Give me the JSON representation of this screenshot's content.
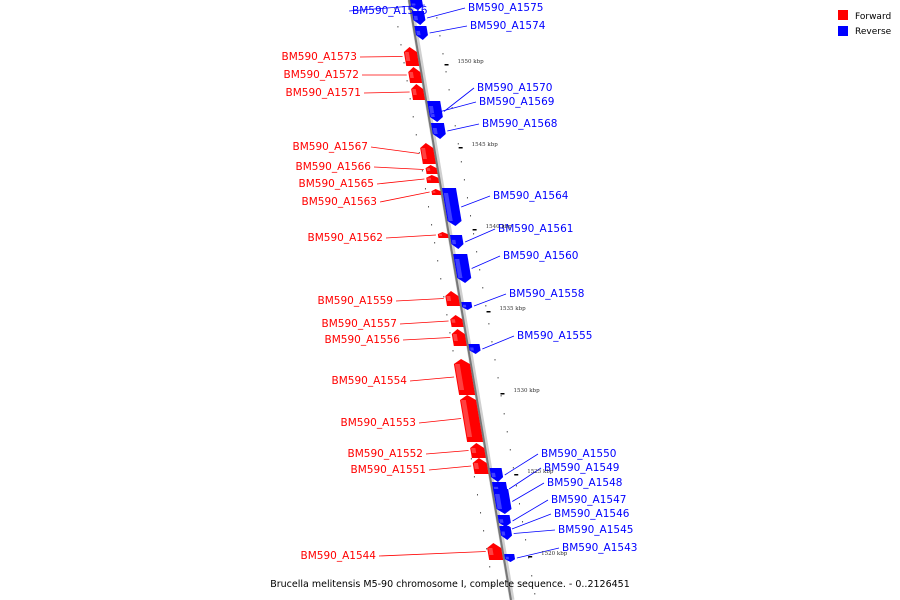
{
  "legend": {
    "forward": {
      "label": "Forward",
      "color": "#ff0000"
    },
    "reverse": {
      "label": "Reverse",
      "color": "#0000ff"
    }
  },
  "caption": "Brucella melitensis M5-90 chromosome I, complete sequence. - 0..2126451",
  "ticks": [
    "1550 kbp",
    "1545 kbp",
    "1540 kbp",
    "1535 kbp",
    "1530 kbp",
    "1525 kbp",
    "1520 kbp"
  ],
  "genes": [
    {
      "name": "BM590_A1576",
      "strand": "reverse"
    },
    {
      "name": "BM590_A1575",
      "strand": "reverse"
    },
    {
      "name": "BM590_A1574",
      "strand": "reverse"
    },
    {
      "name": "BM590_A1573",
      "strand": "forward"
    },
    {
      "name": "BM590_A1572",
      "strand": "forward"
    },
    {
      "name": "BM590_A1571",
      "strand": "forward"
    },
    {
      "name": "BM590_A1570",
      "strand": "reverse"
    },
    {
      "name": "BM590_A1569",
      "strand": "reverse"
    },
    {
      "name": "BM590_A1568",
      "strand": "reverse"
    },
    {
      "name": "BM590_A1567",
      "strand": "forward"
    },
    {
      "name": "BM590_A1566",
      "strand": "forward"
    },
    {
      "name": "BM590_A1565",
      "strand": "forward"
    },
    {
      "name": "BM590_A1563",
      "strand": "forward"
    },
    {
      "name": "BM590_A1564",
      "strand": "reverse"
    },
    {
      "name": "BM590_A1562",
      "strand": "forward"
    },
    {
      "name": "BM590_A1561",
      "strand": "reverse"
    },
    {
      "name": "BM590_A1560",
      "strand": "reverse"
    },
    {
      "name": "BM590_A1559",
      "strand": "forward"
    },
    {
      "name": "BM590_A1558",
      "strand": "reverse"
    },
    {
      "name": "BM590_A1557",
      "strand": "forward"
    },
    {
      "name": "BM590_A1556",
      "strand": "forward"
    },
    {
      "name": "BM590_A1555",
      "strand": "reverse"
    },
    {
      "name": "BM590_A1554",
      "strand": "forward"
    },
    {
      "name": "BM590_A1553",
      "strand": "forward"
    },
    {
      "name": "BM590_A1552",
      "strand": "forward"
    },
    {
      "name": "BM590_A1551",
      "strand": "forward"
    },
    {
      "name": "BM590_A1550",
      "strand": "reverse"
    },
    {
      "name": "BM590_A1549",
      "strand": "reverse"
    },
    {
      "name": "BM590_A1548",
      "strand": "reverse"
    },
    {
      "name": "BM590_A1547",
      "strand": "reverse"
    },
    {
      "name": "BM590_A1546",
      "strand": "reverse"
    },
    {
      "name": "BM590_A1545",
      "strand": "reverse"
    },
    {
      "name": "BM590_A1543",
      "strand": "reverse"
    },
    {
      "name": "BM590_A1544",
      "strand": "forward"
    }
  ]
}
